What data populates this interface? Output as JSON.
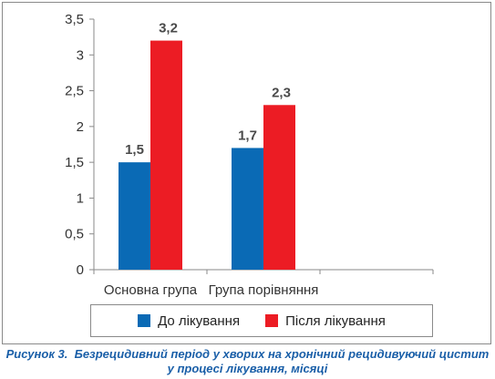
{
  "chart_data": {
    "type": "bar",
    "categories": [
      "Основна група",
      "Група порівняння"
    ],
    "series": [
      {
        "name": "До лікування",
        "values": [
          1.5,
          1.7
        ],
        "labels": [
          "1,5",
          "1,7"
        ],
        "color": "#0a6ab5"
      },
      {
        "name": "Після лікування",
        "values": [
          3.2,
          2.3
        ],
        "labels": [
          "3,2",
          "2,3"
        ],
        "color": "#ec1c24"
      }
    ],
    "ylim": [
      0,
      3.5
    ],
    "yticks": [
      0,
      0.5,
      1,
      1.5,
      2,
      2.5,
      3,
      3.5
    ],
    "ytick_labels": [
      "0",
      "0,5",
      "1",
      "1,5",
      "2",
      "2,5",
      "3",
      "3,5"
    ],
    "grid": false,
    "legend_position": "bottom"
  },
  "caption": {
    "figure_label": "Рисунок 3.",
    "line1": "Безрецидивний період у хворих на хронічний рецидивуючий цистит",
    "line2": "у процесі лікування, місяці"
  }
}
